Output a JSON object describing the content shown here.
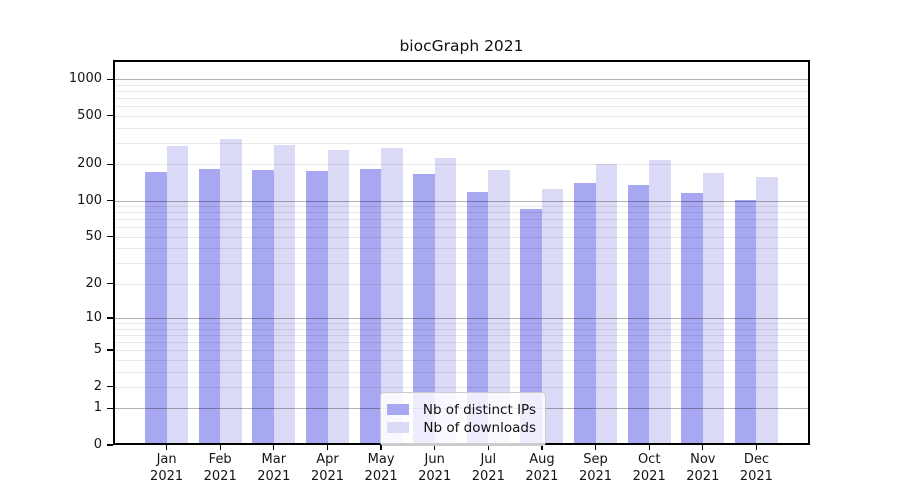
{
  "title": "biocGraph 2021",
  "legend": {
    "items": [
      {
        "label": "Nb of distinct IPs"
      },
      {
        "label": "Nb of downloads"
      }
    ]
  },
  "y_axis": {
    "tick_labels": [
      "1000",
      "500",
      "200",
      "100",
      "50",
      "20",
      "10",
      "5",
      "2",
      "1",
      "0"
    ]
  },
  "x_axis": {
    "months": [
      "Jan",
      "Feb",
      "Mar",
      "Apr",
      "May",
      "Jun",
      "Jul",
      "Aug",
      "Sep",
      "Oct",
      "Nov",
      "Dec"
    ],
    "year": "2021"
  },
  "chart_data": {
    "type": "bar",
    "title": "biocGraph 2021",
    "categories": [
      "Jan 2021",
      "Feb 2021",
      "Mar 2021",
      "Apr 2021",
      "May 2021",
      "Jun 2021",
      "Jul 2021",
      "Aug 2021",
      "Sep 2021",
      "Oct 2021",
      "Nov 2021",
      "Dec 2021"
    ],
    "series": [
      {
        "name": "Nb of distinct IPs",
        "color": "#a7a7f2",
        "values": [
          172,
          181,
          179,
          176,
          183,
          166,
          118,
          85,
          140,
          136,
          115,
          102
        ]
      },
      {
        "name": "Nb of downloads",
        "color": "#dadaf7",
        "values": [
          281,
          320,
          287,
          261,
          272,
          226,
          179,
          125,
          200,
          215,
          168,
          157
        ]
      }
    ],
    "y_scale": "log1p",
    "y_ticks": [
      1000,
      500,
      200,
      100,
      50,
      20,
      10,
      5,
      2,
      1,
      0
    ],
    "y_major_ticks": [
      1000,
      100,
      10,
      1
    ],
    "ylim": [
      0,
      1400
    ],
    "grid": true,
    "legend_position": "lower center",
    "colors": {
      "grid_major": "rgba(0,0,0,0.30)",
      "grid_minor": "rgba(0,0,0,0.085)",
      "frame": "#000000"
    }
  }
}
